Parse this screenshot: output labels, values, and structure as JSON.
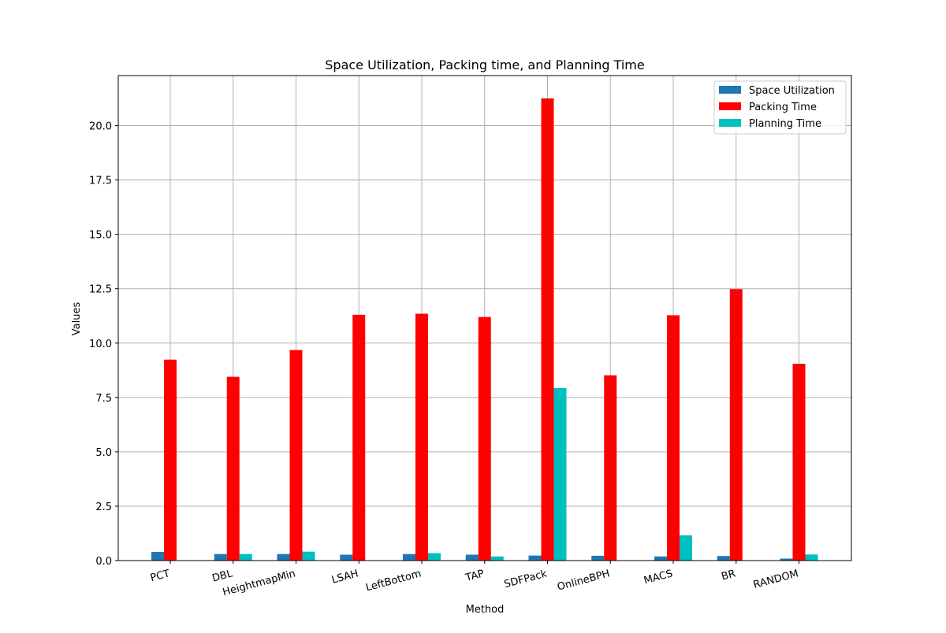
{
  "chart_data": {
    "type": "bar",
    "title": "Space Utilization, Packing time, and Planning Time",
    "xlabel": "Method",
    "ylabel": "Values",
    "ylim": [
      0,
      22.3
    ],
    "yticks": [
      0.0,
      2.5,
      5.0,
      7.5,
      10.0,
      12.5,
      15.0,
      17.5,
      20.0
    ],
    "ytick_labels": [
      "0.0",
      "2.5",
      "5.0",
      "7.5",
      "10.0",
      "12.5",
      "15.0",
      "17.5",
      "20.0"
    ],
    "grid": true,
    "legend_position": "top-right",
    "categories": [
      "PCT",
      "DBL",
      "HeightmapMin",
      "LSAH",
      "LeftBottom",
      "TAP",
      "SDFPack",
      "OnlineBPH",
      "MACS",
      "BR",
      "RANDOM"
    ],
    "series": [
      {
        "name": "Space Utilization",
        "color": "#1f77b4",
        "values": [
          0.4,
          0.3,
          0.3,
          0.27,
          0.3,
          0.27,
          0.23,
          0.22,
          0.19,
          0.21,
          0.09
        ]
      },
      {
        "name": "Packing Time",
        "color": "#ff0000",
        "values": [
          9.24,
          8.45,
          9.68,
          11.3,
          11.35,
          11.2,
          21.25,
          8.52,
          11.28,
          12.48,
          9.05
        ]
      },
      {
        "name": "Planning Time",
        "color": "#00bfbf",
        "values": [
          0.0,
          0.3,
          0.41,
          0.0,
          0.34,
          0.19,
          7.93,
          0.0,
          1.16,
          0.0,
          0.28
        ]
      }
    ]
  }
}
